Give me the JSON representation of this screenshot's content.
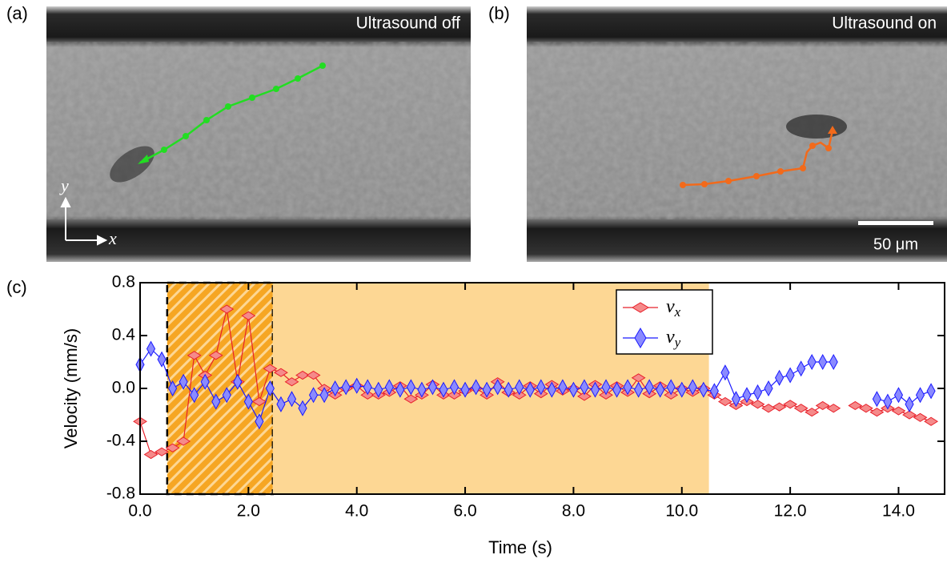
{
  "panels": [
    {
      "label": "(a)",
      "caption": "Ultrasound off",
      "axis_y": "y",
      "axis_x": "x"
    },
    {
      "label": "(b)",
      "caption": "Ultrasound on",
      "scale_bar": "50 μm"
    }
  ],
  "chart_data": {
    "type": "line",
    "panel_label": "(c)",
    "xlabel": "Time (s)",
    "ylabel": "Velocity (mm/s)",
    "xlim": [
      0,
      14.85
    ],
    "ylim": [
      -0.8,
      0.8
    ],
    "xticks": [
      {
        "value": 0,
        "label": "0.0"
      },
      {
        "value": 2,
        "label": "2.0"
      },
      {
        "value": 4,
        "label": "4.0"
      },
      {
        "value": 6,
        "label": "6.0"
      },
      {
        "value": 8,
        "label": "8.0"
      },
      {
        "value": 10,
        "label": "10.0"
      },
      {
        "value": 12,
        "label": "12.0"
      },
      {
        "value": 14,
        "label": "14.0"
      }
    ],
    "yticks": [
      -0.8,
      -0.4,
      {
        "value": 0,
        "label": "0.0"
      },
      0.4,
      0.8
    ],
    "legend": "top-center",
    "shaded_regions": [
      {
        "x": [
          0.5,
          2.45
        ],
        "color": "#f6a623",
        "hatch": true
      },
      {
        "x": [
          2.45,
          10.5
        ],
        "color": "#fdd794",
        "hatch": false
      }
    ],
    "x": [
      0,
      0.2,
      0.4,
      0.6,
      0.8,
      1.0,
      1.2,
      1.4,
      1.6,
      1.8,
      2.0,
      2.2,
      2.4,
      2.6,
      2.8,
      3.0,
      3.2,
      3.4,
      3.6,
      3.8,
      4.0,
      4.2,
      4.4,
      4.6,
      4.8,
      5.0,
      5.2,
      5.4,
      5.6,
      5.8,
      6.0,
      6.2,
      6.4,
      6.6,
      6.8,
      7.0,
      7.2,
      7.4,
      7.6,
      7.8,
      8.0,
      8.2,
      8.4,
      8.6,
      8.8,
      9.0,
      9.2,
      9.4,
      9.6,
      9.8,
      10.0,
      10.2,
      10.4,
      10.6,
      10.8,
      11.0,
      11.2,
      11.4,
      11.6,
      11.8,
      12.0,
      12.2,
      12.4,
      12.6,
      12.8,
      13.0,
      13.2,
      13.4,
      13.6,
      13.8,
      14.0,
      14.2,
      14.4,
      14.6
    ],
    "series": [
      {
        "name": "vx",
        "color": "#e8202a",
        "fill": "#f58a8a",
        "values": [
          -0.25,
          -0.5,
          -0.48,
          -0.45,
          -0.4,
          0.25,
          0.1,
          0.25,
          0.6,
          0.05,
          0.55,
          -0.1,
          0.15,
          0.12,
          0.05,
          0.1,
          0.1,
          0.0,
          -0.05,
          0.0,
          0.02,
          -0.05,
          -0.05,
          -0.03,
          0.02,
          -0.08,
          -0.05,
          0.03,
          -0.05,
          -0.05,
          -0.02,
          0.0,
          -0.05,
          0.05,
          -0.03,
          -0.05,
          0.02,
          -0.04,
          0.03,
          -0.02,
          0.0,
          -0.06,
          0.03,
          -0.05,
          0.02,
          -0.03,
          0.08,
          -0.04,
          0.02,
          -0.05,
          0.0,
          -0.03,
          0.0,
          -0.05,
          -0.1,
          -0.13,
          -0.1,
          -0.12,
          -0.15,
          -0.14,
          -0.12,
          -0.15,
          -0.18,
          -0.13,
          -0.15,
          null,
          -0.13,
          -0.15,
          -0.18,
          -0.15,
          -0.17,
          -0.2,
          -0.22,
          -0.25
        ]
      },
      {
        "name": "vy",
        "color": "#1a1aff",
        "fill": "#8a8aff",
        "values": [
          0.18,
          0.3,
          0.22,
          0.0,
          0.05,
          -0.05,
          0.05,
          -0.1,
          -0.05,
          0.05,
          -0.1,
          -0.25,
          0.0,
          -0.12,
          -0.08,
          -0.15,
          -0.05,
          -0.05,
          0.0,
          0.01,
          0.02,
          0.01,
          -0.01,
          0.01,
          -0.01,
          0.01,
          -0.01,
          0.01,
          -0.01,
          0.01,
          -0.01,
          0.01,
          -0.01,
          0.01,
          -0.01,
          0.01,
          -0.01,
          0.01,
          -0.01,
          0.01,
          -0.01,
          0.01,
          -0.01,
          0.01,
          -0.01,
          0.01,
          -0.01,
          0.01,
          -0.01,
          0.01,
          -0.01,
          0.01,
          -0.01,
          -0.02,
          0.12,
          -0.08,
          -0.05,
          -0.03,
          0.0,
          0.08,
          0.1,
          0.15,
          0.2,
          0.2,
          0.2,
          null,
          null,
          null,
          -0.08,
          -0.1,
          -0.05,
          -0.12,
          -0.05,
          -0.02
        ]
      }
    ]
  }
}
